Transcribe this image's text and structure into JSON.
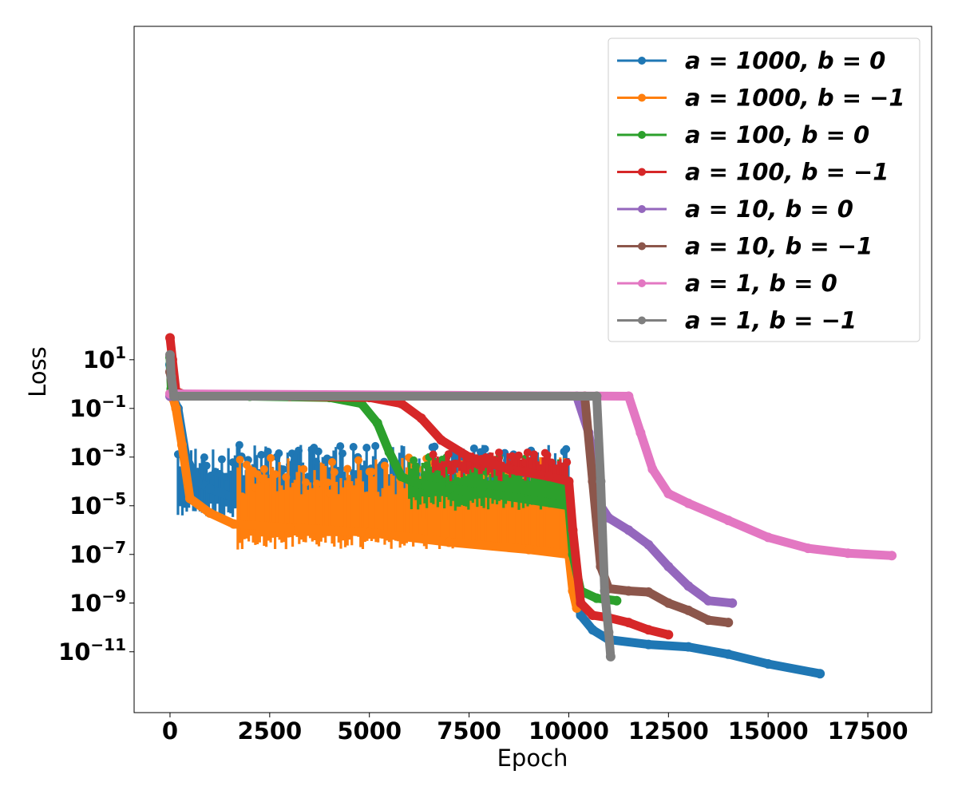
{
  "chart_data": {
    "type": "line",
    "title": "",
    "xlabel": "Epoch",
    "ylabel": "Loss",
    "xlim": [
      -900,
      19100
    ],
    "ylim_log10": [
      -13.5,
      14.7
    ],
    "yscale": "log",
    "grid": false,
    "legend_position": "top-right",
    "x_ticks": [
      {
        "value": 0,
        "label": "0"
      },
      {
        "value": 2500,
        "label": "2500"
      },
      {
        "value": 5000,
        "label": "5000"
      },
      {
        "value": 7500,
        "label": "7500"
      },
      {
        "value": 10000,
        "label": "10000"
      },
      {
        "value": 12500,
        "label": "12500"
      },
      {
        "value": 15000,
        "label": "15000"
      },
      {
        "value": 17500,
        "label": "17500"
      }
    ],
    "y_ticks": [
      {
        "exp": 1,
        "base": "10",
        "power": "1"
      },
      {
        "exp": -1,
        "base": "10",
        "power": "−1"
      },
      {
        "exp": -3,
        "base": "10",
        "power": "−3"
      },
      {
        "exp": -5,
        "base": "10",
        "power": "−5"
      },
      {
        "exp": -7,
        "base": "10",
        "power": "−7"
      },
      {
        "exp": -9,
        "base": "10",
        "power": "−9"
      },
      {
        "exp": -11,
        "base": "10",
        "power": "−11"
      }
    ],
    "series": [
      {
        "name": "a = 1000, b = 0",
        "color": "#1f77b4",
        "points": [
          [
            0,
            0.8
          ],
          [
            50,
            -0.5
          ],
          [
            200,
            -1
          ],
          [
            400,
            -3
          ],
          [
            700,
            -4
          ],
          [
            1000,
            -4.3
          ],
          [
            1500,
            -4.6
          ],
          [
            2500,
            -4.9
          ],
          [
            4000,
            -5.1
          ],
          [
            6000,
            -5.3
          ],
          [
            8000,
            -5.6
          ],
          [
            9500,
            -5.8
          ],
          [
            10000,
            -5.9
          ],
          [
            10150,
            -8
          ],
          [
            10300,
            -9.5
          ],
          [
            10600,
            -10.1
          ],
          [
            11000,
            -10.5
          ],
          [
            12000,
            -10.7
          ],
          [
            13000,
            -10.8
          ],
          [
            14000,
            -11.1
          ],
          [
            15000,
            -11.5
          ],
          [
            16300,
            -11.9
          ]
        ],
        "noise": {
          "x_start": 200,
          "x_end": 10000,
          "y_low": -5.5,
          "y_high": -2.5
        }
      },
      {
        "name": "a = 1000, b = −1",
        "color": "#ff7f0e",
        "points": [
          [
            0,
            -0.4
          ],
          [
            80,
            -0.6
          ],
          [
            150,
            -1
          ],
          [
            300,
            -2.5
          ],
          [
            500,
            -4.7
          ],
          [
            1000,
            -5.3
          ],
          [
            1600,
            -5.75
          ],
          [
            3000,
            -5.9
          ],
          [
            5000,
            -6.1
          ],
          [
            7000,
            -6.5
          ],
          [
            9000,
            -6.8
          ],
          [
            10000,
            -7
          ],
          [
            10100,
            -8.5
          ],
          [
            10200,
            -9.2
          ]
        ],
        "noise": {
          "x_start": 1700,
          "x_end": 10000,
          "y_low": -6.8,
          "y_high": -3.0
        }
      },
      {
        "name": "a = 100, b = 0",
        "color": "#2ca02c",
        "points": [
          [
            0,
            1.1
          ],
          [
            30,
            -0.2
          ],
          [
            100,
            -0.5
          ],
          [
            2000,
            -0.5
          ],
          [
            4000,
            -0.55
          ],
          [
            4800,
            -0.8
          ],
          [
            5200,
            -1.6
          ],
          [
            5500,
            -2.8
          ],
          [
            5800,
            -3.8
          ],
          [
            6200,
            -4.1
          ],
          [
            7000,
            -4.3
          ],
          [
            8000,
            -4.5
          ],
          [
            9000,
            -4.75
          ],
          [
            10000,
            -5
          ],
          [
            10100,
            -7
          ],
          [
            10300,
            -8.5
          ],
          [
            10700,
            -8.8
          ],
          [
            11200,
            -8.9
          ]
        ],
        "noise": {
          "x_start": 6000,
          "x_end": 10000,
          "y_low": -5.2,
          "y_high": -3.0
        }
      },
      {
        "name": "a = 100, b = −1",
        "color": "#d62728",
        "points": [
          [
            0,
            1.9
          ],
          [
            60,
            1.0
          ],
          [
            150,
            -0.3
          ],
          [
            400,
            -0.45
          ],
          [
            3000,
            -0.5
          ],
          [
            5000,
            -0.55
          ],
          [
            5800,
            -0.8
          ],
          [
            6300,
            -1.4
          ],
          [
            6800,
            -2.3
          ],
          [
            7500,
            -3
          ],
          [
            8500,
            -3.5
          ],
          [
            9500,
            -3.8
          ],
          [
            10000,
            -4
          ],
          [
            10100,
            -6
          ],
          [
            10300,
            -9
          ],
          [
            10600,
            -9.5
          ],
          [
            11000,
            -9.6
          ],
          [
            11500,
            -9.8
          ],
          [
            12000,
            -10.1
          ],
          [
            12500,
            -10.3
          ]
        ],
        "noise": {
          "x_start": 6600,
          "x_end": 10000,
          "y_low": -4.0,
          "y_high": -2.8
        }
      },
      {
        "name": "a = 10, b = 0",
        "color": "#9467bd",
        "points": [
          [
            0,
            -0.5
          ],
          [
            200,
            -0.5
          ],
          [
            10200,
            -0.5
          ],
          [
            10500,
            -2
          ],
          [
            10800,
            -5
          ],
          [
            11000,
            -5.5
          ],
          [
            11500,
            -6
          ],
          [
            12000,
            -6.6
          ],
          [
            12500,
            -7.5
          ],
          [
            13000,
            -8.3
          ],
          [
            13500,
            -8.9
          ],
          [
            14100,
            -9
          ]
        ]
      },
      {
        "name": "a = 10, b = −1",
        "color": "#8c564b",
        "points": [
          [
            0,
            0.5
          ],
          [
            100,
            -0.5
          ],
          [
            10400,
            -0.5
          ],
          [
            10600,
            -4
          ],
          [
            10800,
            -7.5
          ],
          [
            11000,
            -8.4
          ],
          [
            11500,
            -8.5
          ],
          [
            12000,
            -8.55
          ],
          [
            12500,
            -9
          ],
          [
            13000,
            -9.3
          ],
          [
            13500,
            -9.7
          ],
          [
            14000,
            -9.8
          ]
        ]
      },
      {
        "name": "a = 1, b = 0",
        "color": "#e377c2",
        "points": [
          [
            0,
            -0.4
          ],
          [
            11500,
            -0.5
          ],
          [
            11800,
            -2
          ],
          [
            12100,
            -3.5
          ],
          [
            12500,
            -4.5
          ],
          [
            13000,
            -4.9
          ],
          [
            14000,
            -5.6
          ],
          [
            15000,
            -6.3
          ],
          [
            16000,
            -6.75
          ],
          [
            17000,
            -6.95
          ],
          [
            18100,
            -7.05
          ]
        ]
      },
      {
        "name": "a = 1, b = −1",
        "color": "#7f7f7f",
        "points": [
          [
            0,
            1.2
          ],
          [
            30,
            0.3
          ],
          [
            100,
            -0.5
          ],
          [
            10700,
            -0.5
          ],
          [
            10800,
            -4
          ],
          [
            10900,
            -8.5
          ],
          [
            11000,
            -10.2
          ],
          [
            11050,
            -11.2
          ]
        ]
      }
    ]
  }
}
